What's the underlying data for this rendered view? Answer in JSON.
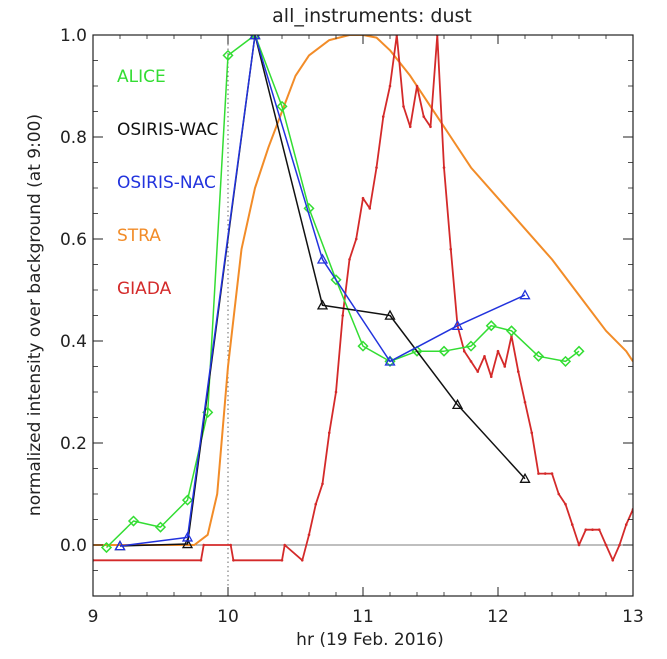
{
  "chart_data": {
    "type": "line",
    "title": "all_instruments: dust",
    "xlabel": "hr (19 Feb. 2016)",
    "ylabel": "normalized intensity over background (at 9:00)",
    "xlim": [
      9,
      13
    ],
    "ylim": [
      -0.1,
      1.0
    ],
    "xticks": [
      9,
      10,
      11,
      12,
      13
    ],
    "yticks": [
      0.0,
      0.2,
      0.4,
      0.6,
      0.8,
      1.0
    ],
    "ytick_labels": [
      "0.0",
      "0.2",
      "0.4",
      "0.6",
      "0.8",
      "1.0"
    ],
    "reference_vline_x": 10.0,
    "reference_hline_y": 0.0,
    "legend_position": "upper-left",
    "series": [
      {
        "name": "STRA",
        "color": "#f28c28",
        "marker": "none",
        "x": [
          9.0,
          9.5,
          9.75,
          9.85,
          9.92,
          10.0,
          10.1,
          10.2,
          10.3,
          10.4,
          10.5,
          10.6,
          10.75,
          10.9,
          11.0,
          11.1,
          11.2,
          11.35,
          11.5,
          11.65,
          11.8,
          12.0,
          12.2,
          12.4,
          12.6,
          12.8,
          12.95,
          13.0
        ],
        "y": [
          0.0,
          0.0,
          0.0,
          0.02,
          0.1,
          0.35,
          0.58,
          0.7,
          0.78,
          0.85,
          0.92,
          0.96,
          0.99,
          1.0,
          1.0,
          0.995,
          0.97,
          0.92,
          0.86,
          0.8,
          0.74,
          0.68,
          0.62,
          0.56,
          0.49,
          0.42,
          0.38,
          0.36
        ]
      },
      {
        "name": "GIADA",
        "color": "#d42a2a",
        "marker": "dot",
        "x": [
          9.0,
          9.8,
          9.82,
          10.02,
          10.04,
          10.4,
          10.42,
          10.55,
          10.6,
          10.65,
          10.7,
          10.75,
          10.8,
          10.85,
          10.9,
          10.95,
          11.0,
          11.05,
          11.1,
          11.15,
          11.2,
          11.25,
          11.3,
          11.35,
          11.4,
          11.45,
          11.5,
          11.55,
          11.6,
          11.65,
          11.7,
          11.75,
          11.8,
          11.85,
          11.9,
          11.95,
          12.0,
          12.05,
          12.1,
          12.15,
          12.2,
          12.25,
          12.3,
          12.35,
          12.4,
          12.45,
          12.5,
          12.55,
          12.6,
          12.65,
          12.7,
          12.75,
          12.8,
          12.85,
          12.9,
          12.95,
          13.0
        ],
        "y": [
          -0.03,
          -0.03,
          0.0,
          0.0,
          -0.03,
          -0.03,
          0.0,
          -0.03,
          0.02,
          0.08,
          0.12,
          0.22,
          0.3,
          0.45,
          0.56,
          0.6,
          0.68,
          0.66,
          0.74,
          0.84,
          0.9,
          1.0,
          0.86,
          0.82,
          0.9,
          0.84,
          0.82,
          1.0,
          0.74,
          0.58,
          0.43,
          0.38,
          0.36,
          0.34,
          0.37,
          0.33,
          0.38,
          0.35,
          0.41,
          0.34,
          0.28,
          0.22,
          0.14,
          0.14,
          0.14,
          0.1,
          0.08,
          0.04,
          0.0,
          0.03,
          0.03,
          0.03,
          0.0,
          -0.03,
          0.0,
          0.04,
          0.07
        ]
      },
      {
        "name": "ALICE",
        "color": "#33dd33",
        "marker": "diamond",
        "x": [
          9.1,
          9.3,
          9.5,
          9.7,
          9.85,
          10.0,
          10.2,
          10.4,
          10.6,
          10.8,
          11.0,
          11.2,
          11.4,
          11.6,
          11.8,
          11.95,
          12.1,
          12.3,
          12.5,
          12.6
        ],
        "y": [
          -0.005,
          0.047,
          0.035,
          0.088,
          0.26,
          0.96,
          1.0,
          0.86,
          0.66,
          0.52,
          0.39,
          0.36,
          0.38,
          0.38,
          0.39,
          0.43,
          0.42,
          0.37,
          0.36,
          0.38
        ]
      },
      {
        "name": "OSIRIS-WAC",
        "color": "#111111",
        "marker": "triangle",
        "x": [
          9.2,
          9.7,
          10.2,
          10.7,
          11.2,
          11.7,
          12.2
        ],
        "y": [
          -0.002,
          0.002,
          1.0,
          0.47,
          0.45,
          0.275,
          0.13
        ]
      },
      {
        "name": "OSIRIS-NAC",
        "color": "#2233dd",
        "marker": "triangle",
        "x": [
          9.2,
          9.7,
          10.2,
          10.7,
          11.2,
          11.7,
          12.2
        ],
        "y": [
          -0.002,
          0.015,
          1.0,
          0.56,
          0.36,
          0.43,
          0.49
        ]
      }
    ],
    "legend_order": [
      "ALICE",
      "OSIRIS-WAC",
      "OSIRIS-NAC",
      "STRA",
      "GIADA"
    ]
  }
}
